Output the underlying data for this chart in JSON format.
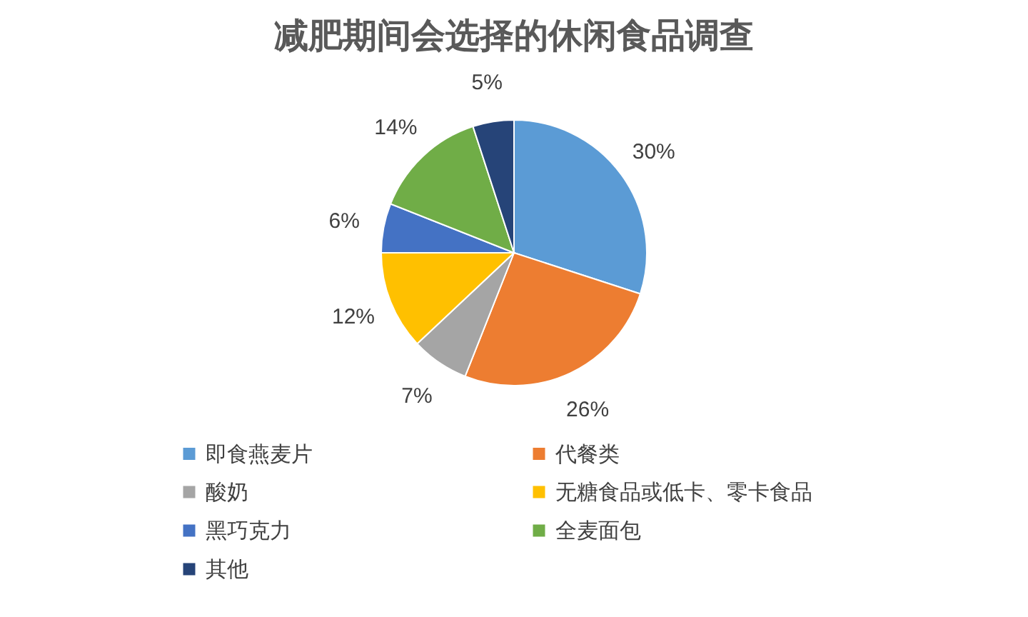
{
  "chart_data": {
    "type": "pie",
    "title": "减肥期间会选择的休闲食品调查",
    "categories": [
      "即食燕麦片",
      "代餐类",
      "酸奶",
      "无糖食品或低卡、零卡食品",
      "黑巧克力",
      "全麦面包",
      "其他"
    ],
    "values": [
      30,
      26,
      7,
      12,
      6,
      14,
      5
    ],
    "value_labels": [
      "30%",
      "26%",
      "7%",
      "12%",
      "6%",
      "14%",
      "5%"
    ],
    "colors": [
      "#5b9bd5",
      "#ed7d31",
      "#a5a5a5",
      "#ffc000",
      "#4472c4",
      "#70ad47",
      "#264478"
    ],
    "legend": "bottom"
  }
}
